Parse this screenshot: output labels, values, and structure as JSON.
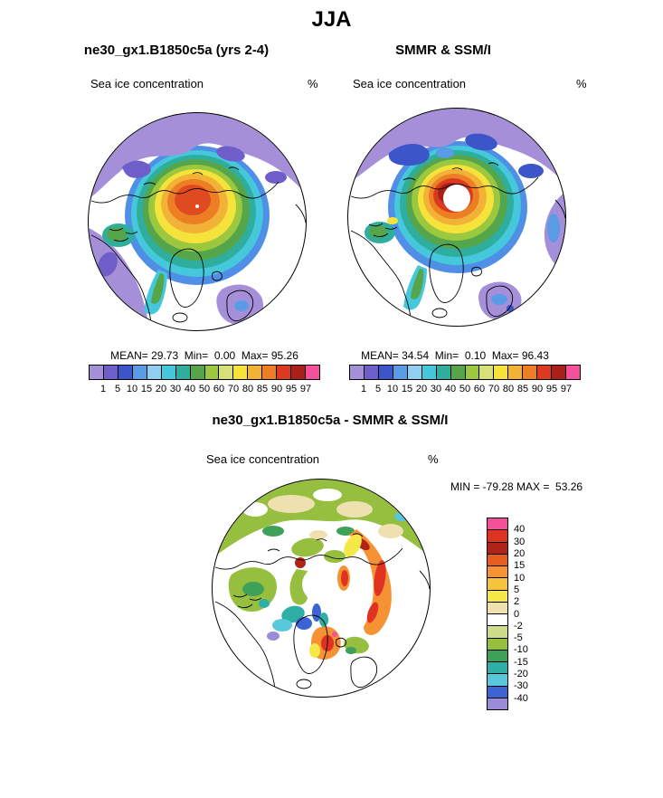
{
  "title": "JJA",
  "model_panel": {
    "title": "ne30_gx1.B1850c5a (yrs 2-4)",
    "field_label": "Sea ice concentration",
    "units": "%",
    "stats": "MEAN= 29.73  Min=  0.00  Max= 95.26"
  },
  "obs_panel": {
    "title": "SMMR & SSM/I",
    "field_label": "Sea ice concentration",
    "units": "%",
    "stats": "MEAN= 34.54  Min=  0.10  Max= 96.43"
  },
  "diff_panel": {
    "title": "ne30_gx1.B1850c5a - SMMR & SSM/I",
    "field_label": "Sea ice concentration",
    "units": "%",
    "stats": "MIN = -79.28 MAX =  53.26"
  },
  "conc_colorbar": {
    "tick_labels": [
      "1",
      "5",
      "10",
      "15",
      "20",
      "30",
      "40",
      "50",
      "60",
      "70",
      "80",
      "85",
      "90",
      "95",
      "97"
    ],
    "colors": [
      "#A58FD8",
      "#6F5EC9",
      "#3C55C9",
      "#5A9BE6",
      "#8FD0F0",
      "#46C8DC",
      "#2FAE9E",
      "#55A54B",
      "#9BC83F",
      "#D8E07A",
      "#F5E33C",
      "#F2B238",
      "#EC7F23",
      "#DC3A20",
      "#A82017",
      "#F5519B"
    ]
  },
  "diff_colorbar": {
    "tick_labels": [
      "40",
      "30",
      "20",
      "15",
      "10",
      "5",
      "2",
      "0",
      "-2",
      "-5",
      "-10",
      "-15",
      "-20",
      "-30",
      "-40"
    ],
    "colors": [
      "#F5519B",
      "#E03220",
      "#B02318",
      "#E85D20",
      "#F59233",
      "#F5C33C",
      "#F5E94A",
      "#EFE0B0",
      "#FFFFFF",
      "#CEDC8C",
      "#96BE3F",
      "#3FA05A",
      "#2FAEA5",
      "#5AC8DC",
      "#3C64D2",
      "#9B8CD8"
    ]
  },
  "chart_data": [
    {
      "type": "heatmap",
      "subtype": "north-polar-stereographic-contour-map",
      "season": "JJA",
      "title": "ne30_gx1.B1850c5a (yrs 2-4)",
      "variable": "Sea ice concentration",
      "units": "%",
      "stats": {
        "mean": 29.73,
        "min": 0.0,
        "max": 95.26
      },
      "contour_levels": [
        1,
        5,
        10,
        15,
        20,
        30,
        40,
        50,
        60,
        70,
        80,
        85,
        90,
        95,
        97
      ],
      "legend_position": "bottom"
    },
    {
      "type": "heatmap",
      "subtype": "north-polar-stereographic-contour-map",
      "season": "JJA",
      "title": "SMMR & SSM/I",
      "variable": "Sea ice concentration",
      "units": "%",
      "stats": {
        "mean": 34.54,
        "min": 0.1,
        "max": 96.43
      },
      "contour_levels": [
        1,
        5,
        10,
        15,
        20,
        30,
        40,
        50,
        60,
        70,
        80,
        85,
        90,
        95,
        97
      ],
      "pole_hole": true,
      "legend_position": "bottom"
    },
    {
      "type": "heatmap",
      "subtype": "north-polar-stereographic-contour-map",
      "season": "JJA",
      "title": "ne30_gx1.B1850c5a - SMMR & SSM/I",
      "variable": "Sea ice concentration difference",
      "units": "%",
      "stats": {
        "min": -79.28,
        "max": 53.26
      },
      "contour_levels": [
        40,
        30,
        20,
        15,
        10,
        5,
        2,
        0,
        -2,
        -5,
        -10,
        -15,
        -20,
        -30,
        -40
      ],
      "pole_hole": true,
      "legend_position": "right"
    }
  ]
}
